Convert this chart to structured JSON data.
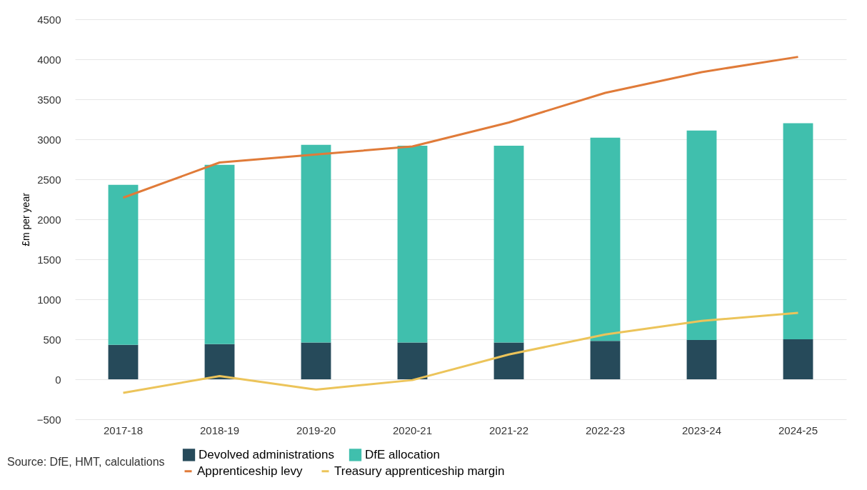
{
  "chart_data": {
    "type": "bar",
    "stacked": true,
    "ylabel": "£m per year",
    "categories": [
      "2017-18",
      "2018-19",
      "2019-20",
      "2020-21",
      "2021-22",
      "2022-23",
      "2023-24",
      "2024-25"
    ],
    "series": [
      {
        "name": "Devolved administrations",
        "color": "#264a5a",
        "values": [
          430,
          440,
          460,
          460,
          460,
          480,
          490,
          500
        ]
      },
      {
        "name": "DfE allocation",
        "color": "#40bfad",
        "values": [
          2000,
          2240,
          2470,
          2460,
          2460,
          2540,
          2620,
          2700
        ]
      },
      {
        "name": "Apprenticeship levy",
        "type": "line",
        "color": "#e07b39",
        "values": [
          2270,
          2710,
          2810,
          2910,
          3210,
          3580,
          3840,
          4030
        ]
      },
      {
        "name": "Treasury apprenticeship margin",
        "type": "line",
        "color": "#ecc45a",
        "values": [
          -170,
          40,
          -130,
          -10,
          310,
          560,
          730,
          830
        ]
      }
    ],
    "ylim": [
      -500,
      4500
    ],
    "yticks": [
      -500,
      0,
      500,
      1000,
      1500,
      2000,
      2500,
      3000,
      3500,
      4000,
      4500
    ],
    "grid": "y",
    "legend": "bottom",
    "marker": "none",
    "line_style": "solid",
    "annotations": [
      "Source: DfE, HMT, calculations"
    ]
  }
}
